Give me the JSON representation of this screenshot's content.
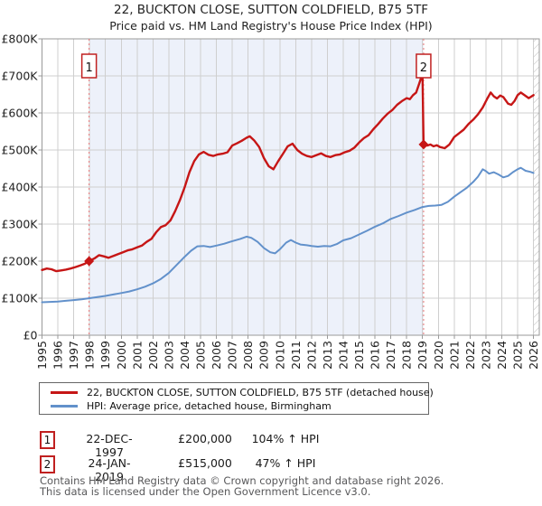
{
  "title": "22, BUCKTON CLOSE, SUTTON COLDFIELD, B75 5TF",
  "subtitle": "Price paid vs. HM Land Registry's House Price Index (HPI)",
  "legend": [
    {
      "label": "22, BUCKTON CLOSE, SUTTON COLDFIELD, B75 5TF (detached house)",
      "color": "#c61616"
    },
    {
      "label": "HPI: Average price, detached house, Birmingham",
      "color": "#6291cb"
    }
  ],
  "transactions": [
    {
      "num": "1",
      "date": "22-DEC-1997",
      "price": "£200,000",
      "vs_hpi": "104% ↑ HPI"
    },
    {
      "num": "2",
      "date": "24-JAN-2019",
      "price": "£515,000",
      "vs_hpi": "47% ↑ HPI"
    }
  ],
  "footer": [
    "Contains HM Land Registry data © Crown copyright and database right 2026.",
    "This data is licensed under the Open Government Licence v3.0."
  ],
  "chart_data": {
    "type": "line",
    "title": "22, BUCKTON CLOSE, SUTTON COLDFIELD, B75 5TF",
    "subtitle": "Price paid vs. HM Land Registry's House Price Index (HPI)",
    "units": "GBP thousands",
    "ylim": [
      0,
      800
    ],
    "xlim": [
      1995,
      2026.4
    ],
    "grid": true,
    "legend_position": "bottom",
    "y_ticks": [
      "£0",
      "£100K",
      "£200K",
      "£300K",
      "£400K",
      "£500K",
      "£600K",
      "£700K",
      "£800K"
    ],
    "y_tick_values": [
      0,
      100,
      200,
      300,
      400,
      500,
      600,
      700,
      800
    ],
    "x_ticks": [
      "1995",
      "1996",
      "1997",
      "1998",
      "1999",
      "2000",
      "2001",
      "2002",
      "2003",
      "2004",
      "2005",
      "2006",
      "2007",
      "2008",
      "2009",
      "2010",
      "2011",
      "2012",
      "2013",
      "2014",
      "2015",
      "2016",
      "2017",
      "2018",
      "2019",
      "2020",
      "2021",
      "2022",
      "2023",
      "2024",
      "2025",
      "2026"
    ],
    "shaded_region": {
      "from": 1997.97,
      "to": 2019.07,
      "color": "#edf1fa"
    },
    "hatch_region_from": 2026.02,
    "markers": [
      {
        "label": "1",
        "year": 1997.97,
        "value": 200
      },
      {
        "label": "2",
        "year": 2019.07,
        "value": 515
      }
    ],
    "series": [
      {
        "name": "22, BUCKTON CLOSE, SUTTON COLDFIELD, B75 5TF (detached house)",
        "color": "#c61616",
        "width": 2.4,
        "points": [
          [
            1995.0,
            176
          ],
          [
            1995.3,
            180
          ],
          [
            1995.6,
            178
          ],
          [
            1995.9,
            173
          ],
          [
            1996.2,
            175
          ],
          [
            1996.5,
            177
          ],
          [
            1996.8,
            180
          ],
          [
            1997.1,
            184
          ],
          [
            1997.4,
            188
          ],
          [
            1997.7,
            193
          ],
          [
            1997.97,
            200
          ],
          [
            1998.3,
            207
          ],
          [
            1998.6,
            216
          ],
          [
            1998.9,
            213
          ],
          [
            1999.2,
            209
          ],
          [
            1999.5,
            214
          ],
          [
            1999.8,
            219
          ],
          [
            2000.1,
            224
          ],
          [
            2000.4,
            229
          ],
          [
            2000.7,
            232
          ],
          [
            2001.0,
            237
          ],
          [
            2001.3,
            242
          ],
          [
            2001.6,
            252
          ],
          [
            2001.9,
            260
          ],
          [
            2002.2,
            278
          ],
          [
            2002.5,
            292
          ],
          [
            2002.8,
            297
          ],
          [
            2003.1,
            310
          ],
          [
            2003.4,
            335
          ],
          [
            2003.7,
            365
          ],
          [
            2004.0,
            400
          ],
          [
            2004.3,
            440
          ],
          [
            2004.6,
            470
          ],
          [
            2004.9,
            488
          ],
          [
            2005.2,
            495
          ],
          [
            2005.5,
            487
          ],
          [
            2005.8,
            484
          ],
          [
            2006.1,
            488
          ],
          [
            2006.4,
            490
          ],
          [
            2006.7,
            494
          ],
          [
            2007.0,
            512
          ],
          [
            2007.3,
            518
          ],
          [
            2007.6,
            525
          ],
          [
            2007.9,
            533
          ],
          [
            2008.1,
            537
          ],
          [
            2008.4,
            525
          ],
          [
            2008.7,
            508
          ],
          [
            2009.0,
            478
          ],
          [
            2009.3,
            456
          ],
          [
            2009.6,
            448
          ],
          [
            2009.9,
            470
          ],
          [
            2010.2,
            490
          ],
          [
            2010.5,
            510
          ],
          [
            2010.8,
            517
          ],
          [
            2011.1,
            500
          ],
          [
            2011.4,
            490
          ],
          [
            2011.7,
            484
          ],
          [
            2012.0,
            481
          ],
          [
            2012.3,
            486
          ],
          [
            2012.6,
            491
          ],
          [
            2012.9,
            484
          ],
          [
            2013.2,
            481
          ],
          [
            2013.5,
            486
          ],
          [
            2013.8,
            488
          ],
          [
            2014.1,
            494
          ],
          [
            2014.4,
            498
          ],
          [
            2014.7,
            506
          ],
          [
            2015.0,
            520
          ],
          [
            2015.3,
            532
          ],
          [
            2015.6,
            540
          ],
          [
            2015.9,
            556
          ],
          [
            2016.2,
            570
          ],
          [
            2016.5,
            585
          ],
          [
            2016.8,
            598
          ],
          [
            2017.1,
            608
          ],
          [
            2017.4,
            622
          ],
          [
            2017.7,
            632
          ],
          [
            2018.0,
            640
          ],
          [
            2018.2,
            637
          ],
          [
            2018.4,
            648
          ],
          [
            2018.6,
            655
          ],
          [
            2018.8,
            680
          ],
          [
            2019.0,
            706
          ],
          [
            2019.07,
            515
          ],
          [
            2019.3,
            512
          ],
          [
            2019.5,
            515
          ],
          [
            2019.7,
            510
          ],
          [
            2019.9,
            513
          ],
          [
            2020.1,
            508
          ],
          [
            2020.4,
            505
          ],
          [
            2020.7,
            515
          ],
          [
            2021.0,
            535
          ],
          [
            2021.3,
            545
          ],
          [
            2021.6,
            555
          ],
          [
            2021.9,
            570
          ],
          [
            2022.2,
            582
          ],
          [
            2022.5,
            596
          ],
          [
            2022.8,
            615
          ],
          [
            2023.1,
            640
          ],
          [
            2023.3,
            655
          ],
          [
            2023.5,
            645
          ],
          [
            2023.7,
            639
          ],
          [
            2023.9,
            647
          ],
          [
            2024.1,
            643
          ],
          [
            2024.4,
            625
          ],
          [
            2024.6,
            622
          ],
          [
            2024.8,
            632
          ],
          [
            2025.0,
            648
          ],
          [
            2025.2,
            655
          ],
          [
            2025.5,
            646
          ],
          [
            2025.7,
            640
          ],
          [
            2026.0,
            648
          ]
        ]
      },
      {
        "name": "HPI: Average price, detached house, Birmingham",
        "color": "#6291cb",
        "width": 2,
        "points": [
          [
            1995.0,
            89
          ],
          [
            1995.5,
            90
          ],
          [
            1996.0,
            91
          ],
          [
            1996.5,
            93
          ],
          [
            1997.0,
            95
          ],
          [
            1997.5,
            97
          ],
          [
            1998.0,
            100
          ],
          [
            1998.5,
            103
          ],
          [
            1999.0,
            106
          ],
          [
            1999.5,
            110
          ],
          [
            2000.0,
            114
          ],
          [
            2000.5,
            118
          ],
          [
            2001.0,
            124
          ],
          [
            2001.5,
            131
          ],
          [
            2002.0,
            140
          ],
          [
            2002.5,
            152
          ],
          [
            2003.0,
            168
          ],
          [
            2003.5,
            190
          ],
          [
            2004.0,
            212
          ],
          [
            2004.4,
            228
          ],
          [
            2004.8,
            240
          ],
          [
            2005.2,
            241
          ],
          [
            2005.6,
            238
          ],
          [
            2006.0,
            242
          ],
          [
            2006.5,
            247
          ],
          [
            2007.0,
            254
          ],
          [
            2007.5,
            260
          ],
          [
            2007.9,
            266
          ],
          [
            2008.2,
            263
          ],
          [
            2008.6,
            252
          ],
          [
            2009.0,
            235
          ],
          [
            2009.4,
            224
          ],
          [
            2009.7,
            221
          ],
          [
            2010.0,
            232
          ],
          [
            2010.4,
            250
          ],
          [
            2010.7,
            257
          ],
          [
            2011.0,
            250
          ],
          [
            2011.3,
            245
          ],
          [
            2011.7,
            243
          ],
          [
            2012.0,
            241
          ],
          [
            2012.4,
            239
          ],
          [
            2012.8,
            241
          ],
          [
            2013.2,
            240
          ],
          [
            2013.6,
            246
          ],
          [
            2014.0,
            256
          ],
          [
            2014.5,
            262
          ],
          [
            2015.0,
            272
          ],
          [
            2015.5,
            282
          ],
          [
            2016.0,
            293
          ],
          [
            2016.5,
            302
          ],
          [
            2017.0,
            314
          ],
          [
            2017.5,
            322
          ],
          [
            2018.0,
            331
          ],
          [
            2018.5,
            338
          ],
          [
            2019.0,
            346
          ],
          [
            2019.4,
            349
          ],
          [
            2019.8,
            350
          ],
          [
            2020.2,
            352
          ],
          [
            2020.6,
            360
          ],
          [
            2021.0,
            374
          ],
          [
            2021.4,
            386
          ],
          [
            2021.8,
            398
          ],
          [
            2022.2,
            414
          ],
          [
            2022.5,
            428
          ],
          [
            2022.8,
            448
          ],
          [
            2023.0,
            443
          ],
          [
            2023.2,
            436
          ],
          [
            2023.5,
            440
          ],
          [
            2023.8,
            434
          ],
          [
            2024.1,
            426
          ],
          [
            2024.4,
            430
          ],
          [
            2024.7,
            440
          ],
          [
            2025.0,
            448
          ],
          [
            2025.2,
            452
          ],
          [
            2025.5,
            444
          ],
          [
            2025.8,
            441
          ],
          [
            2026.0,
            438
          ]
        ]
      }
    ]
  }
}
